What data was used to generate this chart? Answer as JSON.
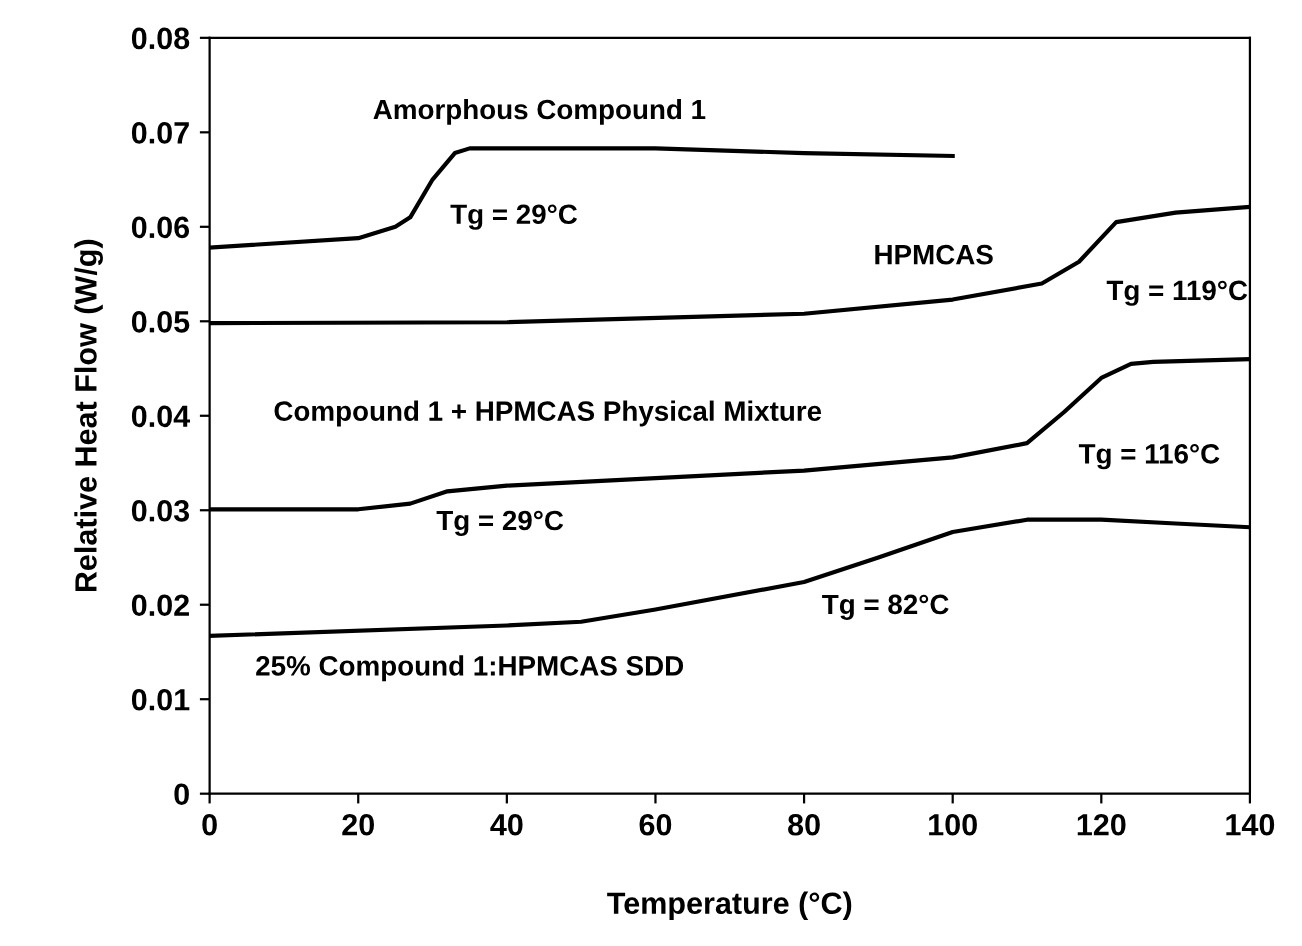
{
  "chart_data": {
    "type": "line",
    "xlabel": "Temperature (°C)",
    "ylabel": "Relative Heat Flow (W/g)",
    "xlim": [
      0,
      140
    ],
    "xticks": [
      0,
      20,
      40,
      60,
      80,
      100,
      120,
      140
    ],
    "ylim": [
      0,
      0.08
    ],
    "yticks": [
      0,
      0.01,
      0.02,
      0.03,
      0.04,
      0.05,
      0.06,
      0.07,
      0.08
    ],
    "grid": false,
    "marker": "none",
    "line_style": "solid",
    "series": [
      {
        "name": "Amorphous Compound 1",
        "color": "#000000",
        "x": [
          0,
          20,
          25,
          27,
          30,
          33,
          35,
          60,
          80,
          100
        ],
        "values": [
          0.0578,
          0.0588,
          0.06,
          0.061,
          0.065,
          0.0678,
          0.0683,
          0.0683,
          0.0678,
          0.0675
        ]
      },
      {
        "name": "HPMCAS",
        "color": "#000000",
        "x": [
          0,
          40,
          80,
          100,
          112,
          117,
          122,
          130,
          140
        ],
        "values": [
          0.0498,
          0.0499,
          0.0508,
          0.0523,
          0.054,
          0.0563,
          0.0605,
          0.0615,
          0.0621
        ]
      },
      {
        "name": "Compound 1 + HPMCAS Physical Mixture",
        "color": "#000000",
        "x": [
          0,
          20,
          27,
          32,
          40,
          80,
          100,
          110,
          115,
          120,
          124,
          127,
          140
        ],
        "values": [
          0.0301,
          0.0301,
          0.0307,
          0.032,
          0.0326,
          0.0342,
          0.0356,
          0.0371,
          0.0404,
          0.044,
          0.0455,
          0.0457,
          0.046
        ]
      },
      {
        "name": "25% Compound 1:HPMCAS SDD",
        "color": "#000000",
        "x": [
          0,
          40,
          50,
          60,
          80,
          90,
          100,
          110,
          120,
          130,
          140
        ],
        "values": [
          0.0167,
          0.0178,
          0.0182,
          0.0195,
          0.0224,
          0.025,
          0.0277,
          0.029,
          0.029,
          0.0286,
          0.0282
        ]
      }
    ],
    "annotations": [
      {
        "text": "Tg = 29°C",
        "x": 29,
        "y": 0.064
      },
      {
        "text": "Tg = 119°C",
        "x": 119,
        "y": 0.058
      },
      {
        "text": "Tg = 29°C",
        "x": 29,
        "y": 0.0313
      },
      {
        "text": "Tg = 116°C",
        "x": 116,
        "y": 0.041
      },
      {
        "text": "Tg = 82°C",
        "x": 82,
        "y": 0.023
      }
    ]
  }
}
